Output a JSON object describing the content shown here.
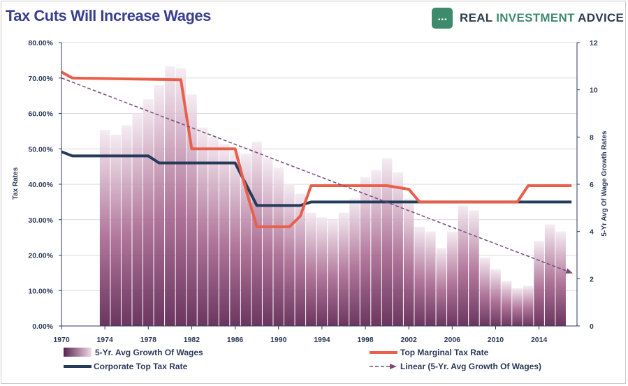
{
  "title": "Tax Cuts Will Increase Wages",
  "brand": {
    "logo_icon": "chart-logo-icon",
    "word1": "REAL ",
    "word2": "INVESTMENT",
    "word3": " ADVICE",
    "colors": {
      "dark": "#2d3b4e",
      "green": "#3e8a6c"
    }
  },
  "chart_data": {
    "type": "bar+line",
    "ylabel_left": "Tax Rates",
    "ylabel_right": "5-Yr Avg Of Wage Growth Rates",
    "ylim_left": [
      0,
      0.8
    ],
    "ylim_right": [
      0,
      12
    ],
    "left_ticks": [
      "0.00%",
      "10.00%",
      "20.00%",
      "30.00%",
      "40.00%",
      "50.00%",
      "60.00%",
      "70.00%",
      "80.00%"
    ],
    "right_ticks": [
      "0",
      "2",
      "4",
      "6",
      "8",
      "10",
      "12"
    ],
    "x_ticks": [
      "1970",
      "1974",
      "1978",
      "1982",
      "1986",
      "1990",
      "1994",
      "1998",
      "2002",
      "2006",
      "2010",
      "2014"
    ],
    "xlim": [
      1970,
      2017.5
    ],
    "grid": true,
    "colors": {
      "bars_top": "#f3e8f0",
      "bars_bottom": "#5a1f4d",
      "marginal": "#e8604c",
      "corporate": "#243b5c",
      "linear": "#7a4a7a",
      "axis": "#2c3a5a"
    },
    "series": [
      {
        "name": "5-Yr. Avg Growth Of Wages",
        "axis": "right",
        "type": "bar",
        "x": [
          1974,
          1975,
          1976,
          1977,
          1978,
          1979,
          1980,
          1981,
          1982,
          1983,
          1984,
          1985,
          1986,
          1987,
          1988,
          1989,
          1990,
          1991,
          1992,
          1993,
          1994,
          1995,
          1996,
          1997,
          1998,
          1999,
          2000,
          2001,
          2002,
          2003,
          2004,
          2005,
          2006,
          2007,
          2008,
          2009,
          2010,
          2011,
          2012,
          2013,
          2014,
          2015,
          2016
        ],
        "values": [
          8.3,
          8.1,
          8.5,
          9.0,
          9.6,
          10.2,
          11.0,
          10.9,
          9.8,
          8.4,
          8.0,
          7.7,
          7.4,
          7.3,
          7.8,
          7.1,
          6.7,
          6.0,
          5.6,
          4.8,
          4.6,
          4.5,
          4.8,
          5.4,
          6.3,
          6.6,
          7.1,
          6.5,
          5.4,
          4.2,
          4.0,
          3.3,
          4.0,
          5.1,
          4.9,
          2.9,
          2.4,
          1.9,
          1.6,
          1.7,
          3.6,
          4.3,
          4.0
        ]
      },
      {
        "name": "Top Marginal Tax Rate",
        "axis": "left",
        "type": "step",
        "x": [
          1970,
          1971,
          1981,
          1982,
          1986,
          1987,
          1988,
          1991,
          1992,
          1993,
          2000,
          2001,
          2002,
          2003,
          2012,
          2013,
          2017
        ],
        "values": [
          0.717,
          0.7,
          0.695,
          0.5,
          0.5,
          0.385,
          0.28,
          0.28,
          0.31,
          0.396,
          0.396,
          0.391,
          0.386,
          0.35,
          0.35,
          0.396,
          0.396
        ]
      },
      {
        "name": "Corporate Top Tax Rate",
        "axis": "left",
        "type": "step",
        "x": [
          1970,
          1971,
          1978,
          1979,
          1986,
          1987,
          1988,
          1992,
          1993,
          2017
        ],
        "values": [
          0.492,
          0.48,
          0.48,
          0.46,
          0.46,
          0.4,
          0.34,
          0.34,
          0.35,
          0.35
        ]
      },
      {
        "name": "Linear (5-Yr. Avg Growth Of Wages)",
        "axis": "right",
        "type": "trendline",
        "x": [
          1970,
          2017
        ],
        "values": [
          10.5,
          2.25
        ]
      }
    ],
    "legend": "bottom"
  }
}
